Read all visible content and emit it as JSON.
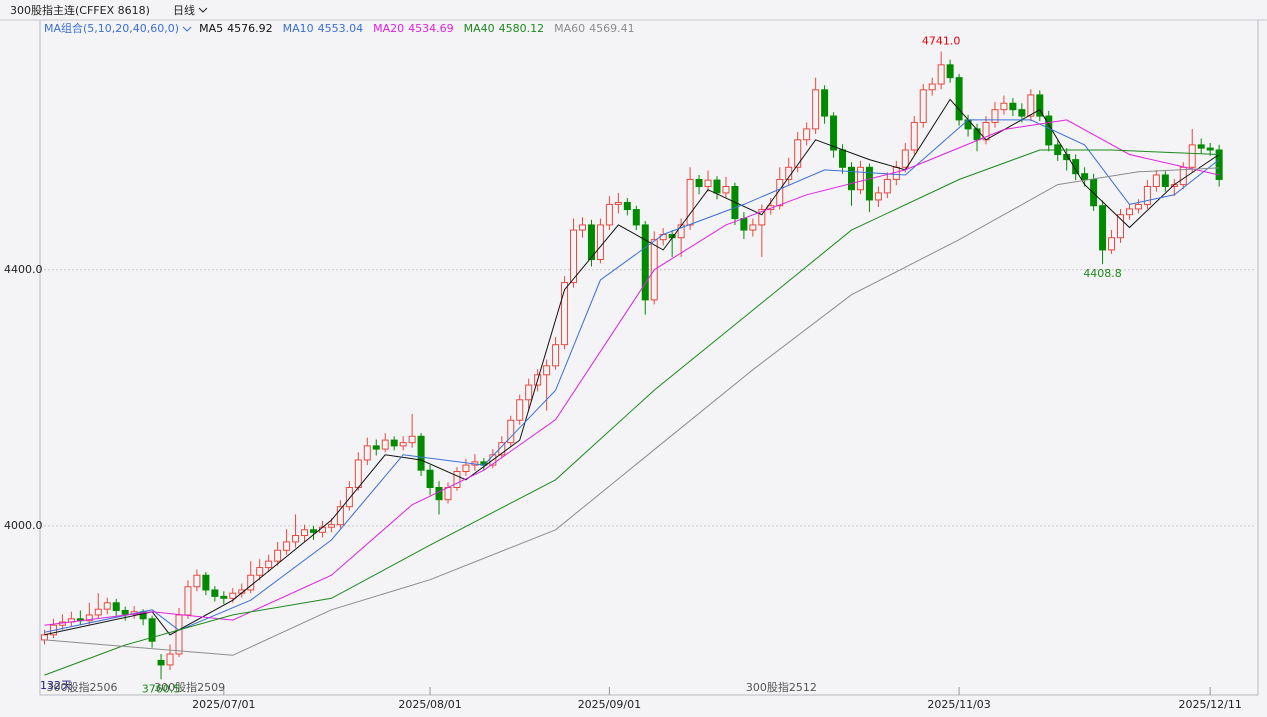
{
  "chart_data": {
    "type": "candlestick",
    "title": "300股指主连(CFFEX 8618)",
    "period": "日线",
    "ma_group_label": "MA组合(5,10,20,40,60,0)",
    "bar_count_label": "132天",
    "ylim": [
      3736,
      4790
    ],
    "yticks": [
      {
        "value": 4000,
        "label": "4000.0"
      },
      {
        "value": 4400,
        "label": "4400.0"
      }
    ],
    "xlim": [
      -0.5,
      135
    ],
    "xticks": [
      {
        "value": 20,
        "label": "2025/07/01"
      },
      {
        "value": 43,
        "label": "2025/08/01"
      },
      {
        "value": 63,
        "label": "2025/09/01"
      },
      {
        "value": 102,
        "label": "2025/11/03"
      },
      {
        "value": 130,
        "label": "2025/12/11"
      }
    ],
    "grid": true,
    "up_color": "#e8483f",
    "down_color": "#008a00",
    "ohlc": [
      [
        3822,
        3838,
        3815,
        3830
      ],
      [
        3830,
        3855,
        3825,
        3845
      ],
      [
        3845,
        3862,
        3838,
        3850
      ],
      [
        3850,
        3866,
        3842,
        3855
      ],
      [
        3855,
        3868,
        3845,
        3852
      ],
      [
        3852,
        3880,
        3846,
        3861
      ],
      [
        3861,
        3895,
        3855,
        3870
      ],
      [
        3870,
        3888,
        3862,
        3880
      ],
      [
        3880,
        3886,
        3858,
        3868
      ],
      [
        3868,
        3874,
        3852,
        3862
      ],
      [
        3862,
        3875,
        3855,
        3866
      ],
      [
        3866,
        3870,
        3845,
        3855
      ],
      [
        3855,
        3860,
        3810,
        3820
      ],
      [
        3790,
        3800,
        3760.5,
        3783
      ],
      [
        3783,
        3815,
        3775,
        3800
      ],
      [
        3800,
        3872,
        3795,
        3861
      ],
      [
        3861,
        3915,
        3855,
        3905
      ],
      [
        3905,
        3932,
        3898,
        3923
      ],
      [
        3923,
        3928,
        3892,
        3900
      ],
      [
        3900,
        3906,
        3882,
        3890
      ],
      [
        3890,
        3898,
        3878,
        3887
      ],
      [
        3887,
        3903,
        3880,
        3895
      ],
      [
        3895,
        3910,
        3888,
        3900
      ],
      [
        3900,
        3945,
        3895,
        3923
      ],
      [
        3923,
        3948,
        3915,
        3935
      ],
      [
        3935,
        3955,
        3928,
        3945
      ],
      [
        3945,
        3975,
        3938,
        3962
      ],
      [
        3962,
        3995,
        3955,
        3975
      ],
      [
        3975,
        4018,
        3966,
        3985
      ],
      [
        3985,
        4002,
        3975,
        3994
      ],
      [
        3994,
        4000,
        3978,
        3990
      ],
      [
        3990,
        4008,
        3982,
        3998
      ],
      [
        3998,
        4012,
        3990,
        4002
      ],
      [
        4002,
        4040,
        3996,
        4030
      ],
      [
        4030,
        4070,
        4024,
        4060
      ],
      [
        4060,
        4115,
        4055,
        4103
      ],
      [
        4103,
        4138,
        4095,
        4125
      ],
      [
        4125,
        4135,
        4110,
        4120
      ],
      [
        4120,
        4145,
        4115,
        4134
      ],
      [
        4134,
        4140,
        4118,
        4125
      ],
      [
        4125,
        4140,
        4118,
        4130
      ],
      [
        4130,
        4175,
        4122,
        4140
      ],
      [
        4140,
        4145,
        4078,
        4087
      ],
      [
        4087,
        4095,
        4048,
        4060
      ],
      [
        4060,
        4070,
        4018,
        4041
      ],
      [
        4041,
        4068,
        4035,
        4060
      ],
      [
        4060,
        4092,
        4055,
        4085
      ],
      [
        4085,
        4105,
        4078,
        4095
      ],
      [
        4095,
        4112,
        4086,
        4100
      ],
      [
        4100,
        4106,
        4086,
        4095
      ],
      [
        4095,
        4120,
        4090,
        4111
      ],
      [
        4111,
        4140,
        4105,
        4130
      ],
      [
        4130,
        4172,
        4124,
        4165
      ],
      [
        4165,
        4205,
        4158,
        4197
      ],
      [
        4197,
        4230,
        4180,
        4220
      ],
      [
        4220,
        4245,
        4210,
        4236
      ],
      [
        4236,
        4260,
        4180,
        4250
      ],
      [
        4250,
        4295,
        4244,
        4283
      ],
      [
        4283,
        4390,
        4276,
        4380
      ],
      [
        4380,
        4480,
        4372,
        4462
      ],
      [
        4462,
        4482,
        4450,
        4470
      ],
      [
        4470,
        4478,
        4405,
        4416
      ],
      [
        4416,
        4480,
        4410,
        4470
      ],
      [
        4470,
        4515,
        4462,
        4502
      ],
      [
        4502,
        4520,
        4488,
        4505
      ],
      [
        4505,
        4512,
        4485,
        4494
      ],
      [
        4494,
        4500,
        4462,
        4470
      ],
      [
        4470,
        4476,
        4330,
        4353
      ],
      [
        4353,
        4460,
        4346,
        4447
      ],
      [
        4447,
        4465,
        4438,
        4455
      ],
      [
        4455,
        4462,
        4420,
        4450
      ],
      [
        4450,
        4480,
        4420,
        4470
      ],
      [
        4470,
        4560,
        4462,
        4541
      ],
      [
        4541,
        4548,
        4518,
        4530
      ],
      [
        4530,
        4555,
        4522,
        4540
      ],
      [
        4540,
        4546,
        4510,
        4520
      ],
      [
        4520,
        4545,
        4512,
        4530
      ],
      [
        4530,
        4536,
        4470,
        4480
      ],
      [
        4480,
        4490,
        4448,
        4462
      ],
      [
        4462,
        4480,
        4452,
        4470
      ],
      [
        4470,
        4502,
        4420,
        4494
      ],
      [
        4494,
        4512,
        4486,
        4500
      ],
      [
        4500,
        4560,
        4494,
        4541
      ],
      [
        4541,
        4575,
        4532,
        4560
      ],
      [
        4560,
        4615,
        4552,
        4603
      ],
      [
        4603,
        4630,
        4594,
        4620
      ],
      [
        4620,
        4700,
        4612,
        4681
      ],
      [
        4681,
        4688,
        4628,
        4640
      ],
      [
        4640,
        4646,
        4575,
        4587
      ],
      [
        4587,
        4596,
        4550,
        4560
      ],
      [
        4560,
        4568,
        4500,
        4525
      ],
      [
        4525,
        4570,
        4518,
        4560
      ],
      [
        4560,
        4566,
        4490,
        4509
      ],
      [
        4509,
        4530,
        4498,
        4520
      ],
      [
        4520,
        4552,
        4512,
        4541
      ],
      [
        4541,
        4570,
        4532,
        4560
      ],
      [
        4560,
        4598,
        4552,
        4587
      ],
      [
        4587,
        4640,
        4580,
        4630
      ],
      [
        4630,
        4690,
        4622,
        4681
      ],
      [
        4681,
        4700,
        4672,
        4690
      ],
      [
        4690,
        4741,
        4682,
        4720
      ],
      [
        4720,
        4728,
        4692,
        4700
      ],
      [
        4700,
        4706,
        4625,
        4634
      ],
      [
        4634,
        4642,
        4608,
        4620
      ],
      [
        4620,
        4628,
        4585,
        4603
      ],
      [
        4603,
        4640,
        4596,
        4630
      ],
      [
        4630,
        4662,
        4622,
        4650
      ],
      [
        4650,
        4672,
        4642,
        4660
      ],
      [
        4660,
        4668,
        4640,
        4650
      ],
      [
        4650,
        4660,
        4630,
        4640
      ],
      [
        4640,
        4682,
        4632,
        4673
      ],
      [
        4673,
        4680,
        4632,
        4640
      ],
      [
        4640,
        4648,
        4585,
        4595
      ],
      [
        4595,
        4602,
        4570,
        4580
      ],
      [
        4580,
        4590,
        4555,
        4572
      ],
      [
        4572,
        4580,
        4540,
        4550
      ],
      [
        4550,
        4560,
        4530,
        4541
      ],
      [
        4541,
        4550,
        4492,
        4500
      ],
      [
        4500,
        4508,
        4408.8,
        4431
      ],
      [
        4431,
        4462,
        4425,
        4450
      ],
      [
        4450,
        4495,
        4442,
        4486
      ],
      [
        4486,
        4502,
        4478,
        4495
      ],
      [
        4495,
        4510,
        4488,
        4502
      ],
      [
        4502,
        4540,
        4495,
        4530
      ],
      [
        4530,
        4556,
        4522,
        4548
      ],
      [
        4548,
        4554,
        4522,
        4530
      ],
      [
        4530,
        4542,
        4515,
        4533
      ],
      [
        4533,
        4568,
        4526,
        4560
      ],
      [
        4560,
        4620,
        4552,
        4595
      ],
      [
        4595,
        4605,
        4582,
        4590
      ],
      [
        4590,
        4598,
        4578,
        4587
      ],
      [
        4587,
        4595,
        4530,
        4541
      ]
    ],
    "series": [
      {
        "name": "MA5",
        "color": "#111111",
        "legend_value": 4576.92,
        "x": [
          0,
          12,
          14,
          21,
          32,
          38,
          42,
          47,
          53,
          58,
          64,
          69,
          74,
          80,
          86,
          92,
          96,
          101,
          105,
          111,
          116,
          121,
          126,
          131
        ],
        "values": [
          3830,
          3866,
          3830,
          3884,
          4009,
          4111,
          4103,
          4072,
          4134,
          4369,
          4470,
          4431,
          4525,
          4486,
          4603,
          4572,
          4556,
          4666,
          4603,
          4650,
          4533,
          4466,
          4533,
          4580
        ]
      },
      {
        "name": "MA10",
        "color": "#3a6fd8",
        "legend_value": 4553.04,
        "x": [
          0,
          12,
          15,
          23,
          32,
          40,
          49,
          57,
          62,
          69,
          78,
          87,
          96,
          103,
          110,
          116,
          121,
          126,
          131
        ],
        "values": [
          3834,
          3869,
          3837,
          3884,
          3978,
          4111,
          4095,
          4212,
          4384,
          4455,
          4502,
          4556,
          4548,
          4634,
          4634,
          4595,
          4502,
          4517,
          4572
        ]
      },
      {
        "name": "MA20",
        "color": "#e020e0",
        "legend_value": 4534.69,
        "x": [
          0,
          12,
          21,
          32,
          41,
          49,
          57,
          68,
          76,
          85,
          96,
          107,
          114,
          121,
          131
        ],
        "values": [
          3845,
          3866,
          3853,
          3923,
          4033,
          4087,
          4166,
          4400,
          4470,
          4517,
          4556,
          4619,
          4634,
          4580,
          4548
        ]
      },
      {
        "name": "MA40",
        "color": "#1a8a1a",
        "legend_value": 4580.12,
        "x": [
          0,
          9,
          21,
          32,
          43,
          57,
          68,
          79,
          90,
          102,
          111,
          119,
          131
        ],
        "values": [
          3767,
          3814,
          3861,
          3887,
          3970,
          4072,
          4212,
          4337,
          4462,
          4541,
          4587,
          4587,
          4580
        ]
      },
      {
        "name": "MA60",
        "color": "#8c8c8c",
        "legend_value": 4569.41,
        "x": [
          0,
          21,
          32,
          43,
          57,
          68,
          79,
          90,
          102,
          113,
          122,
          131
        ],
        "values": [
          3822,
          3798,
          3869,
          3916,
          3994,
          4119,
          4244,
          4361,
          4447,
          4533,
          4553,
          4559
        ]
      }
    ],
    "annotations": [
      {
        "value": 4741,
        "label": "4741.0",
        "color": "#e8000b"
      },
      {
        "value": 4408.8,
        "label": "4408.8",
        "color": "#1a8a1a"
      },
      {
        "value": 3760.5,
        "label": "3760.5",
        "color": "#1a8a1a"
      }
    ],
    "contracts": [
      {
        "x": 0,
        "label": "300股指2506"
      },
      {
        "x": 12,
        "label": "300股指2509"
      },
      {
        "x": 78,
        "label": "300股指2512"
      }
    ]
  }
}
